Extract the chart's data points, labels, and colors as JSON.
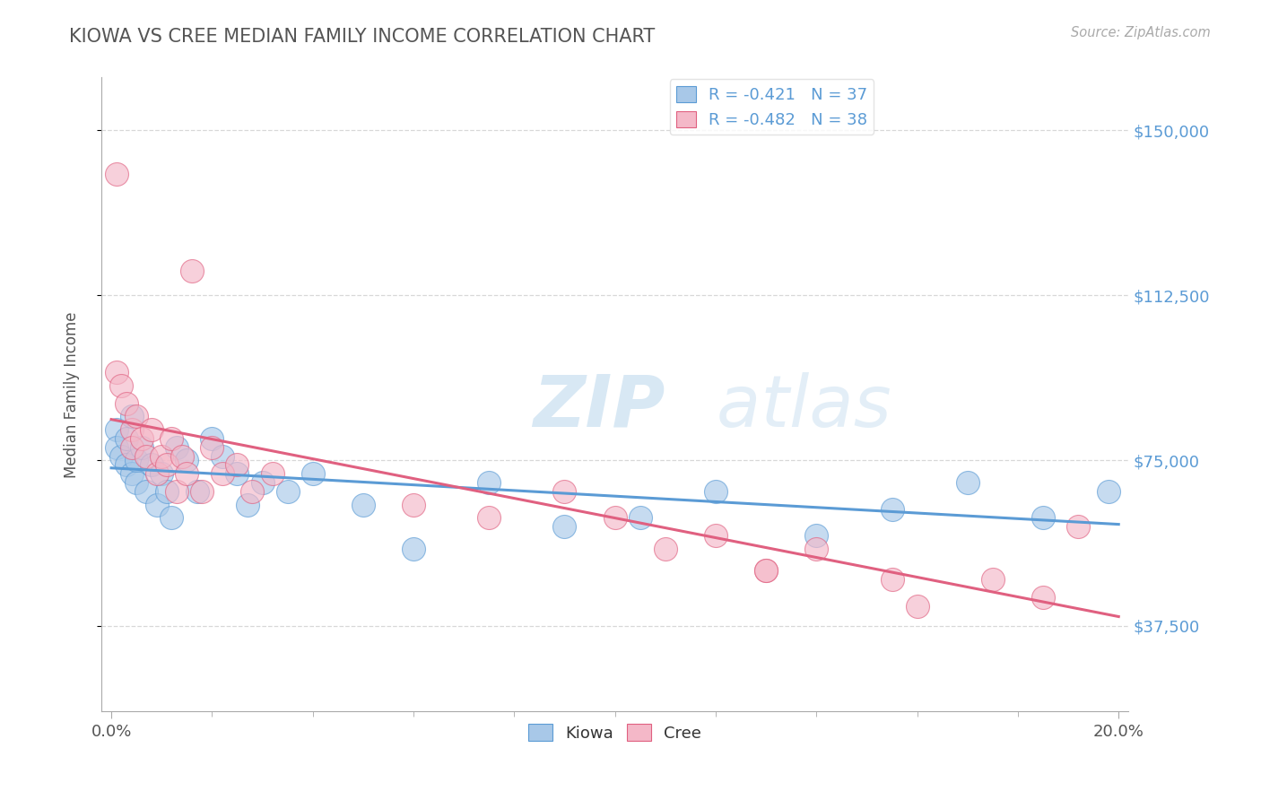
{
  "title": "KIOWA VS CREE MEDIAN FAMILY INCOME CORRELATION CHART",
  "source_text": "Source: ZipAtlas.com",
  "ylabel": "Median Family Income",
  "xlim": [
    -0.002,
    0.202
  ],
  "ylim": [
    18000,
    162000
  ],
  "yticks": [
    37500,
    75000,
    112500,
    150000
  ],
  "ytick_labels": [
    "$37,500",
    "$75,000",
    "$112,500",
    "$150,000"
  ],
  "xticks": [
    0.0,
    0.2
  ],
  "xtick_labels": [
    "0.0%",
    "20.0%"
  ],
  "x_minor_ticks": [
    0.02,
    0.04,
    0.06,
    0.08,
    0.1,
    0.12,
    0.14,
    0.16,
    0.18
  ],
  "kiowa_color": "#a8c8e8",
  "cree_color": "#f4b8c8",
  "kiowa_line_color": "#5b9bd5",
  "cree_line_color": "#e06080",
  "legend_label1": "Kiowa",
  "legend_label2": "Cree",
  "R_kiowa": -0.421,
  "N_kiowa": 37,
  "R_cree": -0.482,
  "N_cree": 38,
  "watermark_zip": "ZIP",
  "watermark_atlas": "atlas",
  "background_color": "#ffffff",
  "grid_color": "#d8d8d8",
  "title_color": "#555555",
  "axis_label_color": "#555555",
  "ytick_label_color": "#5b9bd5",
  "kiowa_x": [
    0.001,
    0.001,
    0.002,
    0.003,
    0.003,
    0.004,
    0.004,
    0.005,
    0.005,
    0.006,
    0.007,
    0.008,
    0.009,
    0.01,
    0.011,
    0.012,
    0.013,
    0.015,
    0.017,
    0.02,
    0.022,
    0.025,
    0.027,
    0.03,
    0.035,
    0.04,
    0.05,
    0.06,
    0.075,
    0.09,
    0.105,
    0.12,
    0.14,
    0.155,
    0.17,
    0.185,
    0.198
  ],
  "kiowa_y": [
    82000,
    78000,
    76000,
    74000,
    80000,
    72000,
    85000,
    70000,
    75000,
    78000,
    68000,
    74000,
    65000,
    72000,
    68000,
    62000,
    78000,
    75000,
    68000,
    80000,
    76000,
    72000,
    65000,
    70000,
    68000,
    72000,
    65000,
    55000,
    70000,
    60000,
    62000,
    68000,
    58000,
    64000,
    70000,
    62000,
    68000
  ],
  "cree_x": [
    0.001,
    0.001,
    0.002,
    0.003,
    0.004,
    0.004,
    0.005,
    0.006,
    0.007,
    0.008,
    0.009,
    0.01,
    0.011,
    0.012,
    0.013,
    0.014,
    0.015,
    0.016,
    0.018,
    0.02,
    0.022,
    0.025,
    0.028,
    0.032,
    0.06,
    0.075,
    0.09,
    0.1,
    0.11,
    0.12,
    0.13,
    0.14,
    0.155,
    0.16,
    0.175,
    0.185,
    0.192,
    0.13
  ],
  "cree_y": [
    95000,
    140000,
    92000,
    88000,
    82000,
    78000,
    85000,
    80000,
    76000,
    82000,
    72000,
    76000,
    74000,
    80000,
    68000,
    76000,
    72000,
    118000,
    68000,
    78000,
    72000,
    74000,
    68000,
    72000,
    65000,
    62000,
    68000,
    62000,
    55000,
    58000,
    50000,
    55000,
    48000,
    42000,
    48000,
    44000,
    60000,
    50000
  ]
}
